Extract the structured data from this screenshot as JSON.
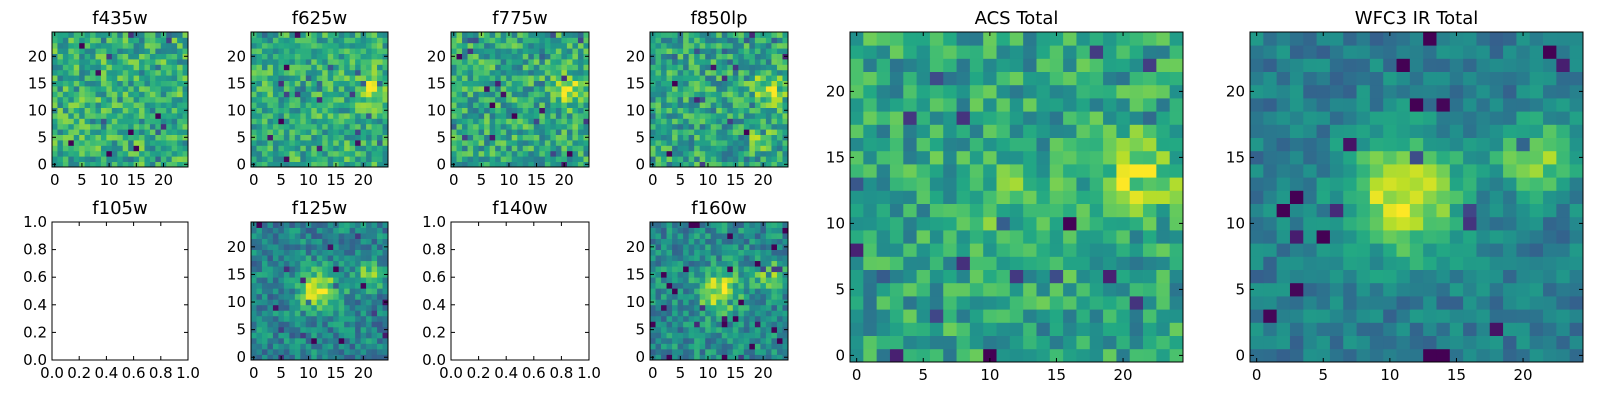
{
  "figure": {
    "colormap": "viridis",
    "colors": {
      "viridis_low": "#440154",
      "viridis_mid": "#21918c",
      "viridis_high": "#fde725",
      "empty_fill": "#ffffff",
      "axis": "#000000"
    }
  },
  "chart_data": [
    {
      "type": "heatmap",
      "title": "f435w",
      "xticks": [
        "0",
        "5",
        "10",
        "15",
        "20"
      ],
      "yticks": [
        "0",
        "5",
        "10",
        "15",
        "20"
      ],
      "xlim": [
        -0.5,
        24.5
      ],
      "ylim": [
        -0.5,
        24.5
      ],
      "grid_size": 25,
      "seed": 11,
      "level": 0.62,
      "noise": 0.22,
      "features": []
    },
    {
      "type": "heatmap",
      "title": "f625w",
      "xticks": [
        "0",
        "5",
        "10",
        "15",
        "20"
      ],
      "yticks": [
        "0",
        "5",
        "10",
        "15",
        "20"
      ],
      "xlim": [
        -0.5,
        24.5
      ],
      "ylim": [
        -0.5,
        24.5
      ],
      "grid_size": 25,
      "seed": 23,
      "level": 0.62,
      "noise": 0.2,
      "features": [
        {
          "x": 21,
          "y": 14,
          "amp": 0.25,
          "sigma": 2.0
        }
      ]
    },
    {
      "type": "heatmap",
      "title": "f775w",
      "xticks": [
        "0",
        "5",
        "10",
        "15",
        "20"
      ],
      "yticks": [
        "0",
        "5",
        "10",
        "15",
        "20"
      ],
      "xlim": [
        -0.5,
        24.5
      ],
      "ylim": [
        -0.5,
        24.5
      ],
      "grid_size": 25,
      "seed": 37,
      "level": 0.6,
      "noise": 0.22,
      "features": [
        {
          "x": 21,
          "y": 14,
          "amp": 0.25,
          "sigma": 2.0
        }
      ]
    },
    {
      "type": "heatmap",
      "title": "f850lp",
      "xticks": [
        "0",
        "5",
        "10",
        "15",
        "20"
      ],
      "yticks": [
        "0",
        "5",
        "10",
        "15",
        "20"
      ],
      "xlim": [
        -0.5,
        24.5
      ],
      "ylim": [
        -0.5,
        24.5
      ],
      "grid_size": 25,
      "seed": 41,
      "level": 0.58,
      "noise": 0.22,
      "features": [
        {
          "x": 21,
          "y": 14,
          "amp": 0.3,
          "sigma": 2.0
        },
        {
          "x": 20,
          "y": 5,
          "amp": 0.3,
          "sigma": 1.4
        }
      ]
    },
    {
      "type": "heatmap",
      "title": "f105w",
      "empty": true,
      "xticks": [
        "0.0",
        "0.2",
        "0.4",
        "0.6",
        "0.8",
        "1.0"
      ],
      "yticks": [
        "0.0",
        "0.2",
        "0.4",
        "0.6",
        "0.8",
        "1.0"
      ],
      "xlim": [
        0,
        1
      ],
      "ylim": [
        0,
        1
      ]
    },
    {
      "type": "heatmap",
      "title": "f125w",
      "xticks": [
        "0",
        "5",
        "10",
        "15",
        "20"
      ],
      "yticks": [
        "0",
        "5",
        "10",
        "15",
        "20"
      ],
      "xlim": [
        -0.5,
        24.5
      ],
      "ylim": [
        -0.5,
        24.5
      ],
      "grid_size": 25,
      "seed": 53,
      "level": 0.45,
      "noise": 0.18,
      "features": [
        {
          "x": 12,
          "y": 12,
          "amp": 0.5,
          "sigma": 2.6
        },
        {
          "x": 21,
          "y": 15,
          "amp": 0.35,
          "sigma": 1.8
        }
      ]
    },
    {
      "type": "heatmap",
      "title": "f140w",
      "empty": true,
      "xticks": [
        "0.0",
        "0.2",
        "0.4",
        "0.6",
        "0.8",
        "1.0"
      ],
      "yticks": [
        "0.0",
        "0.2",
        "0.4",
        "0.6",
        "0.8",
        "1.0"
      ],
      "xlim": [
        0,
        1
      ],
      "ylim": [
        0,
        1
      ]
    },
    {
      "type": "heatmap",
      "title": "f160w",
      "xticks": [
        "0",
        "5",
        "10",
        "15",
        "20"
      ],
      "yticks": [
        "0",
        "5",
        "10",
        "15",
        "20"
      ],
      "xlim": [
        -0.5,
        24.5
      ],
      "ylim": [
        -0.5,
        24.5
      ],
      "grid_size": 25,
      "seed": 67,
      "level": 0.48,
      "noise": 0.18,
      "features": [
        {
          "x": 12,
          "y": 12,
          "amp": 0.45,
          "sigma": 2.6
        },
        {
          "x": 21,
          "y": 15,
          "amp": 0.3,
          "sigma": 1.8
        }
      ]
    },
    {
      "type": "heatmap",
      "title": "ACS Total",
      "xticks": [
        "0",
        "5",
        "10",
        "15",
        "20"
      ],
      "yticks": [
        "0",
        "5",
        "10",
        "15",
        "20"
      ],
      "xlim": [
        -0.5,
        24.5
      ],
      "ylim": [
        -0.5,
        24.5
      ],
      "grid_size": 25,
      "seed": 79,
      "level": 0.58,
      "noise": 0.2,
      "features": [
        {
          "x": 21,
          "y": 14,
          "amp": 0.3,
          "sigma": 2.2
        },
        {
          "x": 11,
          "y": 12,
          "amp": 0.15,
          "sigma": 2.5
        }
      ]
    },
    {
      "type": "heatmap",
      "title": "WFC3 IR Total",
      "xticks": [
        "0",
        "5",
        "10",
        "15",
        "20"
      ],
      "yticks": [
        "0",
        "5",
        "10",
        "15",
        "20"
      ],
      "xlim": [
        -0.5,
        24.5
      ],
      "ylim": [
        -0.5,
        24.5
      ],
      "grid_size": 25,
      "seed": 97,
      "level": 0.42,
      "noise": 0.12,
      "features": [
        {
          "x": 11,
          "y": 12,
          "amp": 0.55,
          "sigma": 3.0
        },
        {
          "x": 21,
          "y": 15,
          "amp": 0.4,
          "sigma": 2.0
        }
      ]
    }
  ]
}
